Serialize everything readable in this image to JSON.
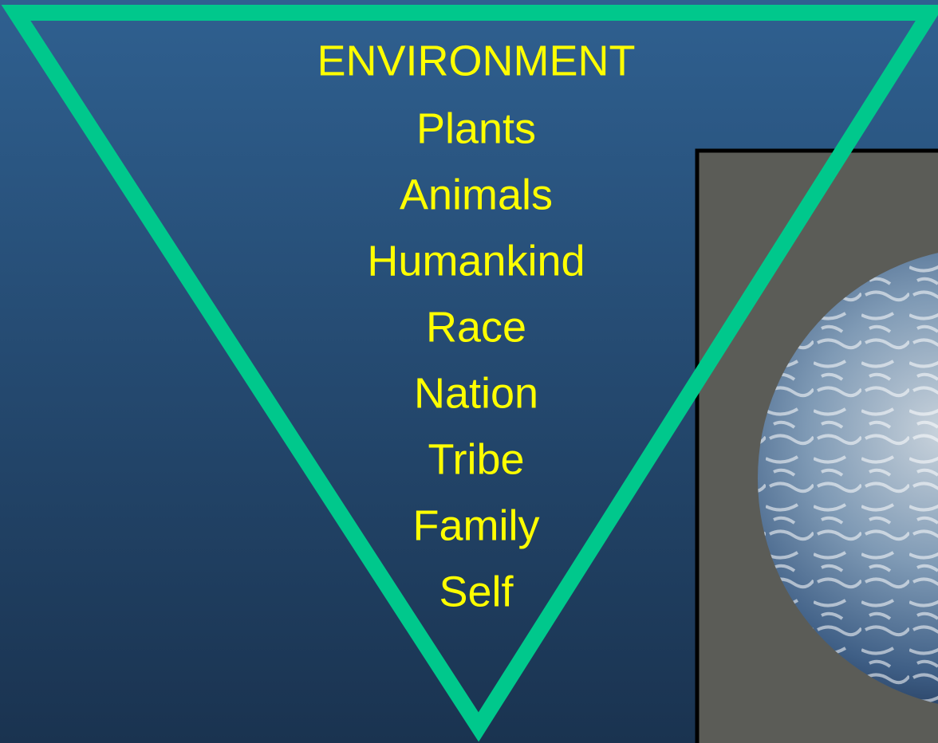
{
  "title": "ENVIRONMENT",
  "items": [
    "Plants",
    "Animals",
    "Humankind",
    "Race",
    "Nation",
    "Tribe",
    "Family",
    "Self"
  ]
}
